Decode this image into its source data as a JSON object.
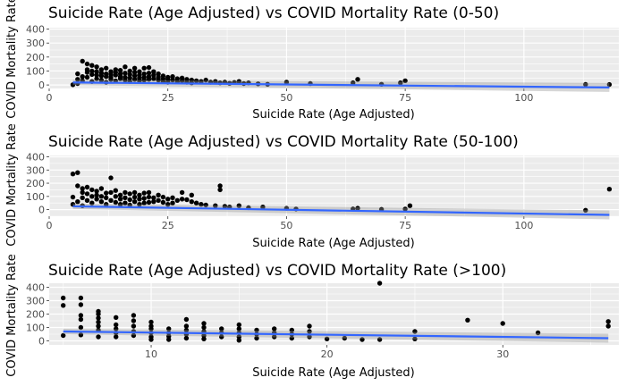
{
  "figure": {
    "background": "#ffffff",
    "panel_color": "#ebebeb",
    "grid_color": "#ffffff",
    "point_color": "#000000",
    "fit_color": "#3366ff",
    "ribbon_color": "#999999"
  },
  "chart_data": [
    {
      "type": "scatter",
      "title": "Suicide Rate (Age Adjusted) vs COVID Mortality Rate (0-50)",
      "xlabel": "Suicide Rate (Age Adjusted)",
      "ylabel": "COVID Mortality Rate",
      "xlim": [
        0,
        120
      ],
      "ylim": [
        -25,
        410
      ],
      "xticks": [
        25,
        50,
        75,
        100
      ],
      "yticks": [
        0,
        100,
        200,
        300,
        400
      ],
      "grid": true,
      "smooth": {
        "method": "lm",
        "x": [
          5,
          118
        ],
        "y": [
          18,
          -18
        ]
      },
      "points": [
        [
          5,
          2
        ],
        [
          6,
          10
        ],
        [
          6,
          40
        ],
        [
          6,
          80
        ],
        [
          7,
          170
        ],
        [
          7,
          60
        ],
        [
          7,
          30
        ],
        [
          8,
          90
        ],
        [
          8,
          150
        ],
        [
          8,
          110
        ],
        [
          8,
          55
        ],
        [
          9,
          140
        ],
        [
          9,
          75
        ],
        [
          9,
          25
        ],
        [
          9,
          100
        ],
        [
          10,
          130
        ],
        [
          10,
          70
        ],
        [
          10,
          95
        ],
        [
          10,
          45
        ],
        [
          11,
          85
        ],
        [
          11,
          65
        ],
        [
          11,
          35
        ],
        [
          11,
          110
        ],
        [
          12,
          80
        ],
        [
          12,
          60
        ],
        [
          12,
          120
        ],
        [
          12,
          20
        ],
        [
          13,
          95
        ],
        [
          13,
          55
        ],
        [
          13,
          75
        ],
        [
          13,
          40
        ],
        [
          14,
          110
        ],
        [
          14,
          70
        ],
        [
          14,
          90
        ],
        [
          14,
          30
        ],
        [
          15,
          105
        ],
        [
          15,
          60
        ],
        [
          15,
          80
        ],
        [
          15,
          45
        ],
        [
          16,
          130
        ],
        [
          16,
          85
        ],
        [
          16,
          55
        ],
        [
          16,
          35
        ],
        [
          17,
          100
        ],
        [
          17,
          75
        ],
        [
          17,
          50
        ],
        [
          17,
          25
        ],
        [
          18,
          120
        ],
        [
          18,
          90
        ],
        [
          18,
          65
        ],
        [
          18,
          40
        ],
        [
          19,
          95
        ],
        [
          19,
          70
        ],
        [
          19,
          50
        ],
        [
          19,
          30
        ],
        [
          20,
          120
        ],
        [
          20,
          80
        ],
        [
          20,
          55
        ],
        [
          20,
          35
        ],
        [
          21,
          125
        ],
        [
          21,
          85
        ],
        [
          21,
          60
        ],
        [
          21,
          40
        ],
        [
          22,
          95
        ],
        [
          22,
          70
        ],
        [
          22,
          45
        ],
        [
          23,
          80
        ],
        [
          23,
          55
        ],
        [
          23,
          35
        ],
        [
          24,
          65
        ],
        [
          24,
          45
        ],
        [
          24,
          25
        ],
        [
          25,
          55
        ],
        [
          25,
          40
        ],
        [
          25,
          20
        ],
        [
          26,
          60
        ],
        [
          26,
          35
        ],
        [
          27,
          45
        ],
        [
          27,
          25
        ],
        [
          28,
          50
        ],
        [
          28,
          30
        ],
        [
          29,
          40
        ],
        [
          29,
          20
        ],
        [
          30,
          35
        ],
        [
          30,
          15
        ],
        [
          31,
          30
        ],
        [
          32,
          25
        ],
        [
          33,
          35
        ],
        [
          34,
          20
        ],
        [
          35,
          25
        ],
        [
          36,
          15
        ],
        [
          37,
          20
        ],
        [
          38,
          12
        ],
        [
          39,
          18
        ],
        [
          40,
          25
        ],
        [
          41,
          10
        ],
        [
          42,
          15
        ],
        [
          44,
          8
        ],
        [
          46,
          5
        ],
        [
          50,
          20
        ],
        [
          55,
          10
        ],
        [
          64,
          15
        ],
        [
          65,
          40
        ],
        [
          70,
          5
        ],
        [
          74,
          15
        ],
        [
          75,
          30
        ],
        [
          113,
          4
        ],
        [
          118,
          3
        ]
      ]
    },
    {
      "type": "scatter",
      "title": "Suicide Rate (Age Adjusted) vs COVID Mortality Rate (50-100)",
      "xlabel": "Suicide Rate (Age Adjusted)",
      "ylabel": "COVID Mortality Rate",
      "xlim": [
        0,
        120
      ],
      "ylim": [
        -50,
        410
      ],
      "xticks": [
        25,
        50,
        75,
        100
      ],
      "yticks": [
        0,
        100,
        200,
        300,
        400
      ],
      "grid": true,
      "smooth": {
        "method": "lm",
        "x": [
          5,
          118
        ],
        "y": [
          25,
          -40
        ]
      },
      "points": [
        [
          5,
          270
        ],
        [
          5,
          95
        ],
        [
          5,
          40
        ],
        [
          6,
          280
        ],
        [
          6,
          180
        ],
        [
          6,
          60
        ],
        [
          7,
          160
        ],
        [
          7,
          130
        ],
        [
          7,
          90
        ],
        [
          7,
          30
        ],
        [
          8,
          170
        ],
        [
          8,
          120
        ],
        [
          8,
          70
        ],
        [
          9,
          150
        ],
        [
          9,
          100
        ],
        [
          9,
          50
        ],
        [
          10,
          140
        ],
        [
          10,
          110
        ],
        [
          10,
          80
        ],
        [
          11,
          160
        ],
        [
          11,
          100
        ],
        [
          11,
          60
        ],
        [
          12,
          125
        ],
        [
          12,
          90
        ],
        [
          12,
          40
        ],
        [
          13,
          240
        ],
        [
          13,
          130
        ],
        [
          13,
          70
        ],
        [
          14,
          145
        ],
        [
          14,
          100
        ],
        [
          14,
          55
        ],
        [
          15,
          110
        ],
        [
          15,
          80
        ],
        [
          15,
          40
        ],
        [
          16,
          130
        ],
        [
          16,
          90
        ],
        [
          16,
          50
        ],
        [
          17,
          120
        ],
        [
          17,
          75
        ],
        [
          17,
          35
        ],
        [
          18,
          130
        ],
        [
          18,
          95
        ],
        [
          18,
          60
        ],
        [
          19,
          110
        ],
        [
          19,
          80
        ],
        [
          19,
          40
        ],
        [
          20,
          125
        ],
        [
          20,
          85
        ],
        [
          20,
          50
        ],
        [
          21,
          130
        ],
        [
          21,
          95
        ],
        [
          21,
          55
        ],
        [
          22,
          90
        ],
        [
          22,
          60
        ],
        [
          23,
          110
        ],
        [
          23,
          70
        ],
        [
          24,
          95
        ],
        [
          24,
          55
        ],
        [
          25,
          80
        ],
        [
          25,
          40
        ],
        [
          26,
          90
        ],
        [
          26,
          50
        ],
        [
          27,
          70
        ],
        [
          28,
          130
        ],
        [
          28,
          80
        ],
        [
          29,
          75
        ],
        [
          30,
          110
        ],
        [
          30,
          60
        ],
        [
          31,
          50
        ],
        [
          32,
          40
        ],
        [
          33,
          35
        ],
        [
          35,
          30
        ],
        [
          36,
          180
        ],
        [
          36,
          150
        ],
        [
          37,
          25
        ],
        [
          38,
          20
        ],
        [
          40,
          30
        ],
        [
          42,
          15
        ],
        [
          45,
          20
        ],
        [
          50,
          10
        ],
        [
          52,
          5
        ],
        [
          64,
          5
        ],
        [
          65,
          10
        ],
        [
          70,
          2
        ],
        [
          75,
          5
        ],
        [
          76,
          30
        ],
        [
          113,
          -5
        ],
        [
          118,
          155
        ]
      ]
    },
    {
      "type": "scatter",
      "title": "Suicide Rate (Age Adjusted) vs COVID Mortality Rate (>100)",
      "xlabel": "Suicide Rate (Age Adjusted)",
      "ylabel": "COVID Mortality Rate",
      "xlim": [
        4.2,
        36.6
      ],
      "ylim": [
        -30,
        430
      ],
      "xticks": [
        10,
        20,
        30
      ],
      "yticks": [
        0,
        100,
        200,
        300,
        400
      ],
      "grid": true,
      "smooth": {
        "method": "lm",
        "x": [
          5,
          36
        ],
        "y": [
          70,
          20
        ]
      },
      "points": [
        [
          5,
          320
        ],
        [
          5,
          265
        ],
        [
          5,
          40
        ],
        [
          6,
          320
        ],
        [
          6,
          270
        ],
        [
          6,
          190
        ],
        [
          6,
          160
        ],
        [
          6,
          100
        ],
        [
          6,
          45
        ],
        [
          7,
          220
        ],
        [
          7,
          200
        ],
        [
          7,
          170
        ],
        [
          7,
          140
        ],
        [
          7,
          110
        ],
        [
          7,
          80
        ],
        [
          7,
          30
        ],
        [
          8,
          175
        ],
        [
          8,
          120
        ],
        [
          8,
          90
        ],
        [
          8,
          60
        ],
        [
          8,
          30
        ],
        [
          9,
          190
        ],
        [
          9,
          150
        ],
        [
          9,
          110
        ],
        [
          9,
          70
        ],
        [
          9,
          40
        ],
        [
          10,
          140
        ],
        [
          10,
          110
        ],
        [
          10,
          90
        ],
        [
          10,
          60
        ],
        [
          10,
          30
        ],
        [
          10,
          10
        ],
        [
          11,
          90
        ],
        [
          11,
          60
        ],
        [
          11,
          35
        ],
        [
          11,
          10
        ],
        [
          12,
          160
        ],
        [
          12,
          110
        ],
        [
          12,
          80
        ],
        [
          12,
          50
        ],
        [
          12,
          20
        ],
        [
          13,
          130
        ],
        [
          13,
          100
        ],
        [
          13,
          70
        ],
        [
          13,
          40
        ],
        [
          13,
          15
        ],
        [
          14,
          90
        ],
        [
          14,
          60
        ],
        [
          14,
          30
        ],
        [
          15,
          120
        ],
        [
          15,
          90
        ],
        [
          15,
          60
        ],
        [
          15,
          30
        ],
        [
          15,
          5
        ],
        [
          16,
          80
        ],
        [
          16,
          50
        ],
        [
          16,
          20
        ],
        [
          17,
          90
        ],
        [
          17,
          60
        ],
        [
          17,
          30
        ],
        [
          18,
          80
        ],
        [
          18,
          50
        ],
        [
          18,
          20
        ],
        [
          19,
          110
        ],
        [
          19,
          70
        ],
        [
          19,
          30
        ],
        [
          20,
          15
        ],
        [
          21,
          20
        ],
        [
          22,
          10
        ],
        [
          23,
          10
        ],
        [
          23,
          430
        ],
        [
          25,
          70
        ],
        [
          25,
          15
        ],
        [
          28,
          155
        ],
        [
          30,
          130
        ],
        [
          32,
          60
        ],
        [
          36,
          145
        ],
        [
          36,
          110
        ]
      ]
    }
  ]
}
